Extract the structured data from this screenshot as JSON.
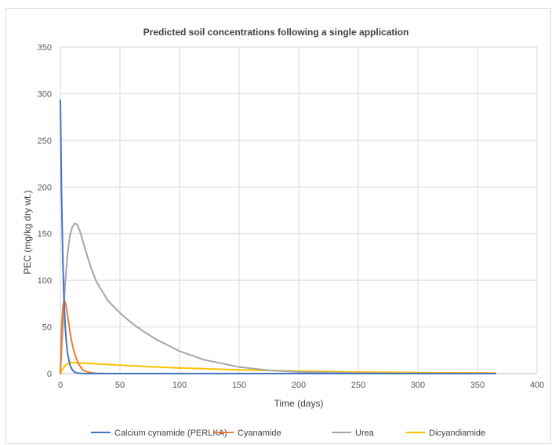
{
  "chart_data": {
    "type": "line",
    "title": "Predicted soil concentrations following a single application",
    "xlabel": "Time (days)",
    "ylabel": "PEC (mg/kg dry wt.)",
    "xlim": [
      0,
      400
    ],
    "ylim": [
      0,
      350
    ],
    "x_ticks": [
      "0",
      "50",
      "100",
      "150",
      "200",
      "250",
      "300",
      "350",
      "400"
    ],
    "y_ticks": [
      "0",
      "50",
      "100",
      "150",
      "200",
      "250",
      "300",
      "350"
    ],
    "grid": true,
    "legend_position": "bottom",
    "series": [
      {
        "name": "Calcium cynamide (PERLKA)",
        "color": "#4472c4",
        "x": [
          0,
          1,
          2,
          3,
          4,
          5,
          6,
          8,
          10,
          12,
          15,
          20,
          25,
          30,
          365
        ],
        "y": [
          293,
          190,
          124,
          80,
          52,
          34,
          22,
          9.3,
          3.9,
          1.6,
          0.4,
          0.05,
          0,
          0,
          0
        ]
      },
      {
        "name": "Cyanamide",
        "color": "#ed7d31",
        "x": [
          0,
          1,
          2,
          3,
          4,
          5,
          6,
          8,
          10,
          12,
          15,
          18,
          20,
          25,
          30,
          40,
          365
        ],
        "y": [
          0,
          48,
          70,
          78,
          77,
          71,
          63,
          45,
          31,
          21,
          11,
          5,
          3,
          1,
          0.3,
          0,
          0
        ]
      },
      {
        "name": "Urea",
        "color": "#a5a5a5",
        "x": [
          0,
          2,
          4,
          6,
          8,
          10,
          12,
          14,
          16,
          18,
          20,
          25,
          30,
          40,
          50,
          60,
          70,
          80,
          100,
          120,
          150,
          175,
          200,
          250,
          300,
          365
        ],
        "y": [
          0,
          48,
          96,
          128,
          148,
          157,
          161,
          160,
          154,
          146,
          137,
          116,
          99,
          78,
          65,
          54,
          45,
          37,
          24,
          15,
          7,
          3.5,
          1.8,
          0.5,
          0.1,
          0
        ]
      },
      {
        "name": "Dicyandiamide",
        "color": "#ffc000",
        "x": [
          0,
          2,
          4,
          6,
          8,
          10,
          12,
          15,
          20,
          30,
          50,
          75,
          100,
          150,
          200,
          250,
          300,
          365
        ],
        "y": [
          0,
          5,
          8.5,
          10.5,
          11.3,
          11.8,
          11.7,
          11.5,
          11.1,
          10.4,
          9,
          7.4,
          6,
          4,
          2.6,
          1.7,
          1.1,
          0.6
        ]
      }
    ]
  }
}
